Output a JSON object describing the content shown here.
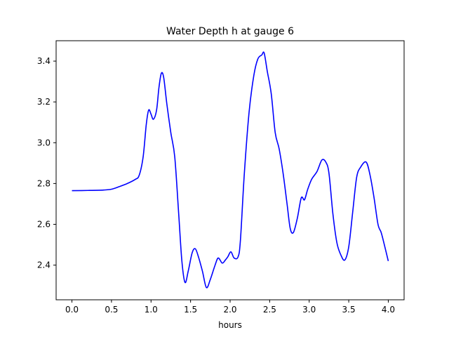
{
  "chart_data": {
    "type": "line",
    "title": "Water Depth h at gauge 6",
    "xlabel": "hours",
    "ylabel": "",
    "xlim": [
      -0.2,
      4.2
    ],
    "ylim": [
      2.23,
      3.5
    ],
    "xticks": [
      "0.0",
      "0.5",
      "1.0",
      "1.5",
      "2.0",
      "2.5",
      "3.0",
      "3.5",
      "4.0"
    ],
    "yticks": [
      "2.4",
      "2.6",
      "2.8",
      "3.0",
      "3.2",
      "3.4"
    ],
    "grid": false,
    "legend": "none",
    "series": [
      {
        "color": "#0000ff",
        "points": [
          [
            0.0,
            2.765
          ],
          [
            0.2,
            2.766
          ],
          [
            0.4,
            2.768
          ],
          [
            0.5,
            2.772
          ],
          [
            0.6,
            2.785
          ],
          [
            0.7,
            2.8
          ],
          [
            0.8,
            2.82
          ],
          [
            0.85,
            2.84
          ],
          [
            0.9,
            2.93
          ],
          [
            0.94,
            3.09
          ],
          [
            0.97,
            3.16
          ],
          [
            1.0,
            3.14
          ],
          [
            1.03,
            3.115
          ],
          [
            1.07,
            3.16
          ],
          [
            1.1,
            3.27
          ],
          [
            1.13,
            3.34
          ],
          [
            1.16,
            3.32
          ],
          [
            1.2,
            3.19
          ],
          [
            1.25,
            3.05
          ],
          [
            1.3,
            2.93
          ],
          [
            1.35,
            2.65
          ],
          [
            1.39,
            2.42
          ],
          [
            1.43,
            2.315
          ],
          [
            1.47,
            2.37
          ],
          [
            1.52,
            2.46
          ],
          [
            1.56,
            2.48
          ],
          [
            1.6,
            2.44
          ],
          [
            1.65,
            2.37
          ],
          [
            1.7,
            2.29
          ],
          [
            1.75,
            2.33
          ],
          [
            1.81,
            2.4
          ],
          [
            1.85,
            2.435
          ],
          [
            1.9,
            2.41
          ],
          [
            1.94,
            2.425
          ],
          [
            1.97,
            2.44
          ],
          [
            2.01,
            2.465
          ],
          [
            2.05,
            2.435
          ],
          [
            2.1,
            2.44
          ],
          [
            2.13,
            2.52
          ],
          [
            2.18,
            2.85
          ],
          [
            2.24,
            3.15
          ],
          [
            2.3,
            3.33
          ],
          [
            2.35,
            3.41
          ],
          [
            2.4,
            3.43
          ],
          [
            2.43,
            3.44
          ],
          [
            2.47,
            3.35
          ],
          [
            2.52,
            3.24
          ],
          [
            2.57,
            3.05
          ],
          [
            2.62,
            2.97
          ],
          [
            2.67,
            2.85
          ],
          [
            2.72,
            2.7
          ],
          [
            2.76,
            2.58
          ],
          [
            2.8,
            2.56
          ],
          [
            2.85,
            2.63
          ],
          [
            2.9,
            2.73
          ],
          [
            2.94,
            2.72
          ],
          [
            2.98,
            2.77
          ],
          [
            3.03,
            2.82
          ],
          [
            3.1,
            2.86
          ],
          [
            3.16,
            2.915
          ],
          [
            3.21,
            2.905
          ],
          [
            3.25,
            2.85
          ],
          [
            3.3,
            2.65
          ],
          [
            3.35,
            2.51
          ],
          [
            3.4,
            2.45
          ],
          [
            3.45,
            2.425
          ],
          [
            3.5,
            2.49
          ],
          [
            3.55,
            2.66
          ],
          [
            3.6,
            2.83
          ],
          [
            3.65,
            2.88
          ],
          [
            3.72,
            2.905
          ],
          [
            3.77,
            2.84
          ],
          [
            3.82,
            2.73
          ],
          [
            3.87,
            2.6
          ],
          [
            3.91,
            2.56
          ],
          [
            3.95,
            2.5
          ],
          [
            4.0,
            2.42
          ]
        ]
      }
    ]
  }
}
